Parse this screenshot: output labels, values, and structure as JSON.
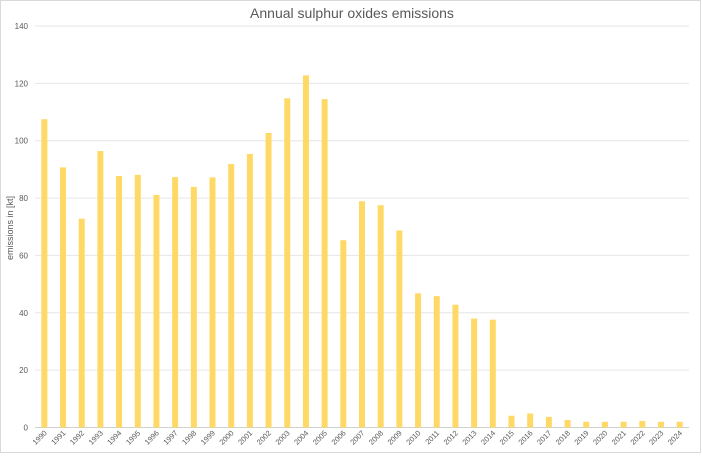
{
  "chart_data": {
    "type": "bar",
    "title": "Annual sulphur oxides emissions",
    "xlabel": "",
    "ylabel": "emissions in [kt]",
    "ylim": [
      0,
      140
    ],
    "yticks": [
      0,
      20,
      40,
      60,
      80,
      100,
      120,
      140
    ],
    "grid": true,
    "bar_color": "#FFD966",
    "categories": [
      "1990",
      "1991",
      "1992",
      "1993",
      "1994",
      "1995",
      "1996",
      "1997",
      "1998",
      "1999",
      "2000",
      "2001",
      "2002",
      "2003",
      "2004",
      "2005",
      "2006",
      "2007",
      "2008",
      "2009",
      "2010",
      "2011",
      "2012",
      "2013",
      "2014",
      "2015",
      "2016",
      "2017",
      "2018",
      "2019",
      "2020",
      "2021",
      "2022",
      "2023",
      "2024"
    ],
    "values": [
      107.5,
      90.7,
      72.8,
      96.4,
      87.7,
      88.1,
      81.1,
      87.3,
      83.9,
      87.2,
      91.9,
      95.4,
      102.7,
      114.8,
      122.8,
      114.5,
      65.3,
      78.9,
      77.5,
      68.7,
      46.8,
      45.8,
      42.8,
      38.0,
      37.6,
      4.1,
      4.9,
      3.7,
      2.6,
      2.0,
      2.0,
      2.0,
      2.3,
      2.0,
      2.0
    ]
  }
}
